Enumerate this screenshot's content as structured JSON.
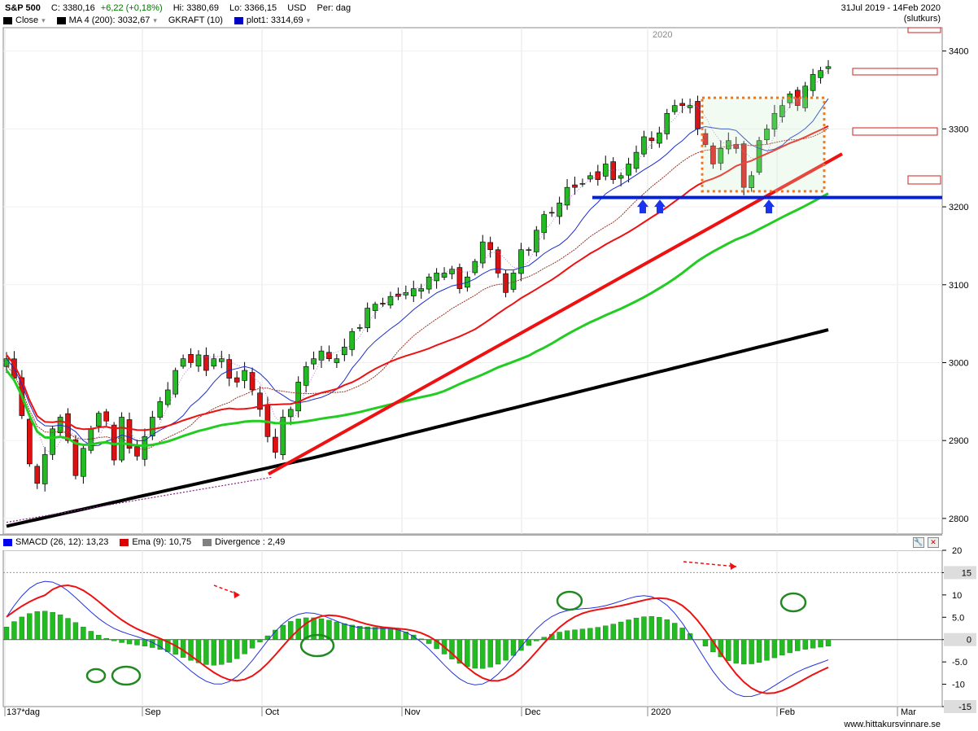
{
  "header": {
    "symbol": "S&P 500",
    "close": "C: 3380,16",
    "change": "+6,22 (+0,18%)",
    "high": "Hi: 3380,69",
    "low": "Lo: 3366,15",
    "currency": "USD",
    "period": "Per: dag",
    "date_range": "31Jul 2019 - 14Feb 2020",
    "price_type": "(slutkurs)"
  },
  "legend_main": [
    {
      "label": "Close",
      "color": "#000000"
    },
    {
      "label": "MA 4 (200): 3032,67",
      "color": "#000000"
    },
    {
      "label": "GKRAFT (10)",
      "color": null
    },
    {
      "label": "plot1: 3314,69",
      "color": "#0000cc"
    }
  ],
  "legend_sub": [
    {
      "label": "SMACD (26, 12): 13,23",
      "color": "#0000ee"
    },
    {
      "label": "Ema (9): 10,75",
      "color": "#dd0000"
    },
    {
      "label": "Divergence : 2,49",
      "color": "#808080"
    }
  ],
  "year_label": "2020",
  "x_labels": [
    "137*dag",
    "Sep",
    "Oct",
    "Nov",
    "Dec",
    "2020",
    "Feb",
    "Mar"
  ],
  "y_labels_main": [
    "3400",
    "3300",
    "3200",
    "3100",
    "3000",
    "2900",
    "2800"
  ],
  "y_labels_sub": [
    "20",
    "15",
    "10",
    "5.0",
    "0",
    "-5.0",
    "-10",
    "-15"
  ],
  "sub_badges": {
    "smacd": "15",
    "zero": "0",
    "bottom": "-15"
  },
  "footer": "www.hittakursvinnare.se",
  "colors": {
    "up": "#22bb22",
    "down": "#dd1111",
    "ma50": "#22cc22",
    "ma200": "#000000",
    "ema": "#ee1111",
    "bband": "#1a2ecc",
    "support": "#0022dd"
  },
  "chart_data": [
    {
      "type": "candlestick",
      "title": "S&P 500",
      "ylim": [
        2780,
        3430
      ],
      "x_range": [
        "2019-07-31",
        "2020-03-05"
      ],
      "closes_approx": [
        3005,
        2980,
        2932,
        2870,
        2845,
        2882,
        2915,
        2930,
        2900,
        2855,
        2890,
        2915,
        2935,
        2925,
        2875,
        2930,
        2890,
        2880,
        2905,
        2930,
        2950,
        2965,
        2990,
        3005,
        3000,
        3010,
        2990,
        3005,
        3005,
        2980,
        2975,
        2990,
        2965,
        2940,
        2905,
        2885,
        2930,
        2940,
        2975,
        2995,
        3005,
        3015,
        3005,
        3005,
        3020,
        3040,
        3045,
        3070,
        3075,
        3075,
        3085,
        3085,
        3090,
        3095,
        3095,
        3110,
        3115,
        3115,
        3120,
        3095,
        3110,
        3130,
        3155,
        3145,
        3115,
        3090,
        3115,
        3145,
        3145,
        3170,
        3190,
        3192,
        3205,
        3225,
        3225,
        3230,
        3240,
        3235,
        3255,
        3235,
        3240,
        3255,
        3270,
        3290,
        3285,
        3295,
        3320,
        3330,
        3330,
        3330,
        3300,
        3280,
        3255,
        3275,
        3285,
        3275,
        3225,
        3240,
        3285,
        3300,
        3320,
        3330,
        3345,
        3330,
        3355,
        3370,
        3375,
        3380
      ],
      "annotations": [
        "support line ~3212",
        "uptrend line",
        "consolidation box 3220-3340"
      ]
    },
    {
      "type": "line",
      "title": "SMACD (26, 12)",
      "ylim": [
        -15,
        20
      ],
      "series": [
        {
          "name": "SMACD (26, 12): 13,23"
        },
        {
          "name": "Ema (9): 10,75"
        },
        {
          "name": "Divergence : 2,49"
        }
      ]
    }
  ]
}
